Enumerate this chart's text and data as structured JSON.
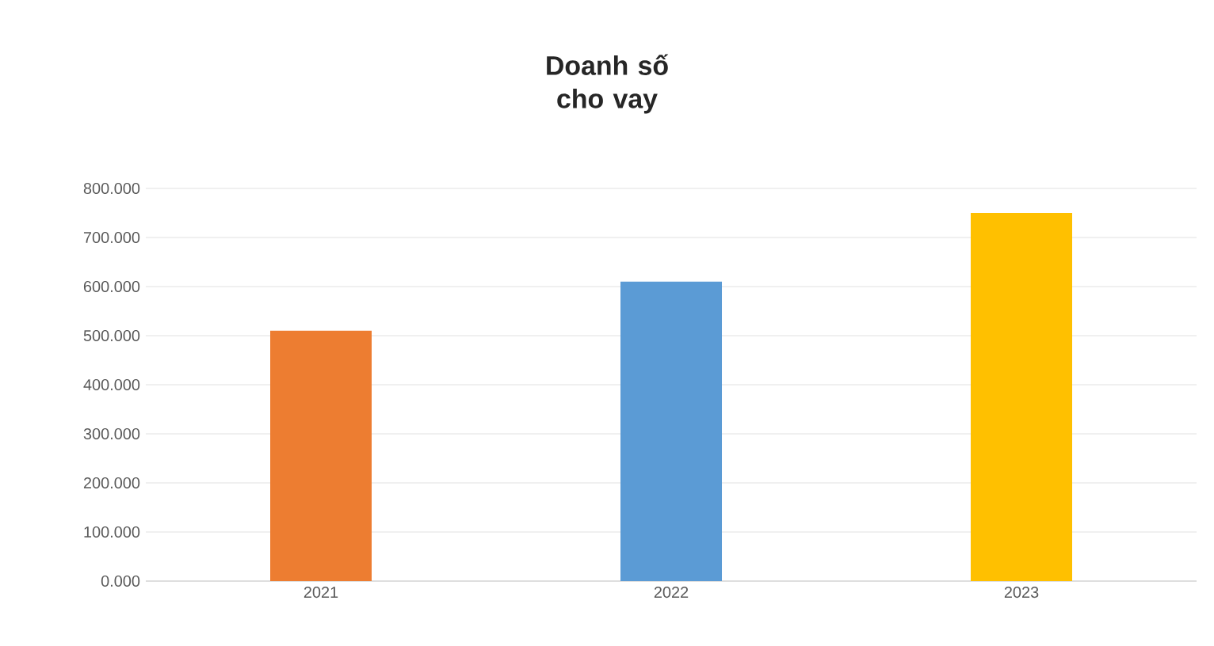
{
  "chart_data": {
    "type": "bar",
    "title": "Doanh số cho vay",
    "categories": [
      "2021",
      "2022",
      "2023"
    ],
    "values": [
      510,
      610,
      750
    ],
    "colors": [
      "#ed7d31",
      "#5b9bd5",
      "#ffc000"
    ],
    "ylim": [
      0,
      800
    ],
    "yticks": [
      {
        "value": 0,
        "label": "0.000"
      },
      {
        "value": 100,
        "label": "100.000"
      },
      {
        "value": 200,
        "label": "200.000"
      },
      {
        "value": 300,
        "label": "300.000"
      },
      {
        "value": 400,
        "label": "400.000"
      },
      {
        "value": 500,
        "label": "500.000"
      },
      {
        "value": 600,
        "label": "600.000"
      },
      {
        "value": 700,
        "label": "700.000"
      },
      {
        "value": 800,
        "label": "800.000"
      }
    ],
    "grid": "y"
  }
}
